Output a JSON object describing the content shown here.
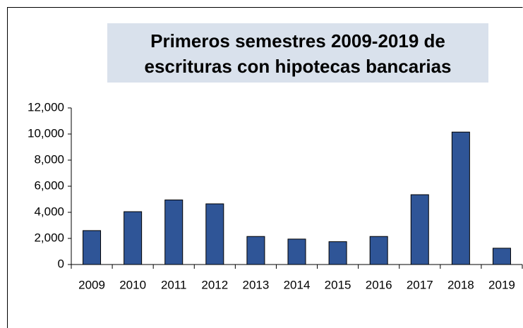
{
  "chart_data": {
    "type": "bar",
    "title": [
      "Primeros semestres 2009-2019 de",
      "escrituras con hipotecas bancarias"
    ],
    "categories": [
      "2009",
      "2010",
      "2011",
      "2012",
      "2013",
      "2014",
      "2015",
      "2016",
      "2017",
      "2018",
      "2019"
    ],
    "values": [
      2600,
      4050,
      4950,
      4650,
      2150,
      1950,
      1750,
      2150,
      5350,
      10150,
      1250
    ],
    "color": "#2f5597",
    "ylim": [
      0,
      12000
    ],
    "yticks": [
      0,
      {
        "value": 2000,
        "label": "2,000"
      },
      {
        "value": 4000,
        "label": "4,000"
      },
      {
        "value": 6000,
        "label": "6,000"
      },
      {
        "value": 8000,
        "label": "8,000"
      },
      {
        "value": 10000,
        "label": "10,000"
      },
      {
        "value": 12000,
        "label": "12,000"
      }
    ],
    "grid": false
  }
}
